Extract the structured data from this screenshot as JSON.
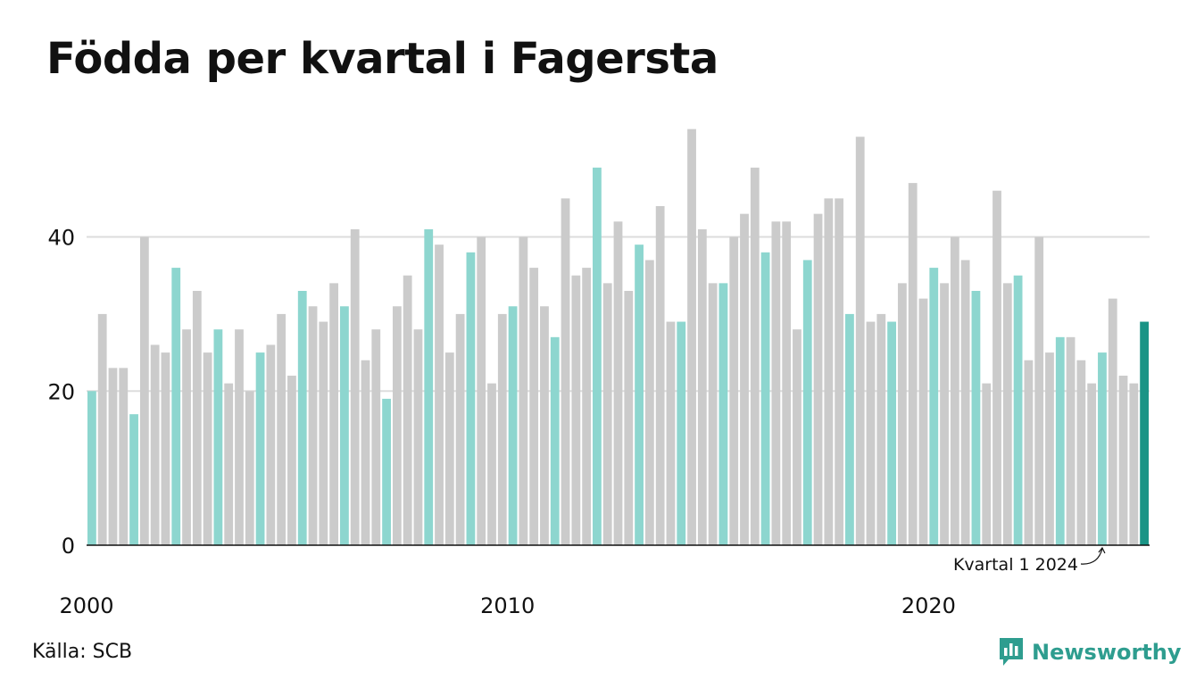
{
  "title": "Födda per kvartal i Fagersta",
  "source": "Källa: SCB",
  "brand": {
    "name": "Newsworthy",
    "icon": "newsworthy-logo-icon"
  },
  "colors": {
    "q1": "#8dd6cf",
    "other": "#cbcbcb",
    "highlight": "#1a9486",
    "grid": "#dddddd",
    "axis": "#111111",
    "brand": "#2e9d8f"
  },
  "chart_data": {
    "type": "bar",
    "start_year": 2000,
    "values": [
      20,
      30,
      23,
      23,
      17,
      40,
      26,
      25,
      36,
      28,
      33,
      25,
      28,
      21,
      28,
      20,
      25,
      26,
      30,
      22,
      33,
      31,
      29,
      34,
      31,
      41,
      24,
      28,
      19,
      31,
      35,
      28,
      41,
      39,
      25,
      30,
      38,
      40,
      21,
      30,
      31,
      40,
      36,
      31,
      27,
      45,
      35,
      36,
      49,
      34,
      42,
      33,
      39,
      37,
      44,
      29,
      29,
      54,
      41,
      34,
      34,
      40,
      43,
      49,
      38,
      42,
      42,
      28,
      37,
      43,
      45,
      45,
      30,
      53,
      29,
      30,
      29,
      34,
      47,
      32,
      36,
      34,
      40,
      37,
      33,
      21,
      46,
      34,
      35,
      24,
      40,
      25,
      27,
      27,
      24,
      21,
      25,
      32,
      22,
      21,
      29
    ],
    "ylim": [
      0,
      55
    ],
    "yticks": [
      0,
      20,
      40
    ],
    "x_tick_labels": [
      "2000",
      "2010",
      "2020"
    ],
    "annotation": "Kvartal 1 2024",
    "grid": true,
    "legend": "none"
  }
}
